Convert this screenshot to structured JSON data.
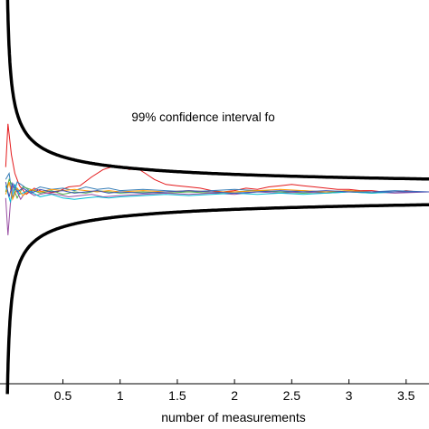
{
  "chart_data": {
    "type": "line",
    "title": "",
    "xlabel": "number of measurements",
    "ylabel": "",
    "xlim": [
      -0.05,
      3.7
    ],
    "ylim": [
      -1.55,
      1.55
    ],
    "grid": false,
    "xticks": [
      {
        "value": 0.5,
        "label": "0.5"
      },
      {
        "value": 1,
        "label": "1"
      },
      {
        "value": 1.5,
        "label": "1.5"
      },
      {
        "value": 2,
        "label": "2"
      },
      {
        "value": 2.5,
        "label": "2.5"
      },
      {
        "value": 3,
        "label": "3"
      },
      {
        "value": 3.5,
        "label": "3.5"
      }
    ],
    "annotation": {
      "text": "99% confidence interval fo",
      "x": 1.1,
      "y": 0.57
    },
    "confidence_bound": {
      "k": 0.2,
      "color": "#000000"
    },
    "series": [
      {
        "color": "#e41a1c",
        "points": [
          [
            0.0,
            0.2
          ],
          [
            0.02,
            0.55
          ],
          [
            0.05,
            0.3
          ],
          [
            0.08,
            0.15
          ],
          [
            0.12,
            0.05
          ],
          [
            0.18,
            -0.02
          ],
          [
            0.25,
            0.03
          ],
          [
            0.35,
            -0.01
          ],
          [
            0.45,
            0.0
          ],
          [
            0.55,
            0.04
          ],
          [
            0.65,
            0.05
          ],
          [
            0.75,
            0.12
          ],
          [
            0.85,
            0.18
          ],
          [
            0.92,
            0.2
          ],
          [
            1.0,
            0.21
          ],
          [
            1.08,
            0.18
          ],
          [
            1.15,
            0.19
          ],
          [
            1.22,
            0.15
          ],
          [
            1.3,
            0.1
          ],
          [
            1.4,
            0.06
          ],
          [
            1.5,
            0.05
          ],
          [
            1.6,
            0.04
          ],
          [
            1.7,
            0.03
          ],
          [
            1.8,
            0.01
          ],
          [
            1.9,
            0.0
          ],
          [
            2.0,
            0.01
          ],
          [
            2.1,
            0.03
          ],
          [
            2.2,
            0.02
          ],
          [
            2.3,
            0.04
          ],
          [
            2.4,
            0.05
          ],
          [
            2.5,
            0.06
          ],
          [
            2.6,
            0.05
          ],
          [
            2.7,
            0.04
          ],
          [
            2.8,
            0.03
          ],
          [
            2.9,
            0.02
          ],
          [
            3.0,
            0.02
          ],
          [
            3.1,
            0.01
          ],
          [
            3.2,
            0.01
          ],
          [
            3.3,
            0.0
          ],
          [
            3.4,
            0.0
          ],
          [
            3.5,
            0.01
          ],
          [
            3.6,
            0.0
          ],
          [
            3.7,
            0.0
          ]
        ]
      },
      {
        "color": "#377eb8",
        "points": [
          [
            0.0,
            0.1
          ],
          [
            0.03,
            0.15
          ],
          [
            0.06,
            -0.05
          ],
          [
            0.1,
            0.08
          ],
          [
            0.15,
            0.05
          ],
          [
            0.22,
            0.0
          ],
          [
            0.3,
            0.04
          ],
          [
            0.4,
            0.02
          ],
          [
            0.5,
            0.03
          ],
          [
            0.6,
            0.01
          ],
          [
            0.7,
            0.04
          ],
          [
            0.8,
            0.02
          ],
          [
            0.9,
            0.03
          ],
          [
            1.0,
            0.01
          ],
          [
            1.2,
            0.02
          ],
          [
            1.4,
            0.01
          ],
          [
            1.6,
            0.0
          ],
          [
            1.8,
            0.01
          ],
          [
            2.0,
            0.02
          ],
          [
            2.2,
            0.01
          ],
          [
            2.4,
            0.0
          ],
          [
            2.6,
            0.01
          ],
          [
            2.8,
            0.0
          ],
          [
            3.0,
            0.01
          ],
          [
            3.2,
            0.0
          ],
          [
            3.4,
            0.01
          ],
          [
            3.7,
            0.0
          ]
        ]
      },
      {
        "color": "#4daf4a",
        "points": [
          [
            0.0,
            0.0
          ],
          [
            0.03,
            0.1
          ],
          [
            0.06,
            0.05
          ],
          [
            0.1,
            -0.05
          ],
          [
            0.15,
            0.04
          ],
          [
            0.22,
            0.02
          ],
          [
            0.3,
            -0.01
          ],
          [
            0.4,
            0.01
          ],
          [
            0.5,
            -0.02
          ],
          [
            0.6,
            0.0
          ],
          [
            0.7,
            -0.01
          ],
          [
            0.8,
            0.01
          ],
          [
            0.9,
            0.0
          ],
          [
            1.0,
            -0.01
          ],
          [
            1.2,
            0.0
          ],
          [
            1.4,
            -0.01
          ],
          [
            1.6,
            0.0
          ],
          [
            1.8,
            -0.01
          ],
          [
            2.0,
            0.0
          ],
          [
            2.2,
            0.01
          ],
          [
            2.4,
            0.0
          ],
          [
            2.6,
            -0.01
          ],
          [
            2.8,
            0.0
          ],
          [
            3.0,
            0.0
          ],
          [
            3.2,
            -0.01
          ],
          [
            3.4,
            0.0
          ],
          [
            3.7,
            0.0
          ]
        ]
      },
      {
        "color": "#984ea3",
        "points": [
          [
            0.0,
            -0.05
          ],
          [
            0.02,
            -0.35
          ],
          [
            0.04,
            -0.1
          ],
          [
            0.06,
            0.05
          ],
          [
            0.09,
            0.02
          ],
          [
            0.13,
            -0.06
          ],
          [
            0.18,
            0.01
          ],
          [
            0.25,
            -0.03
          ],
          [
            0.35,
            -0.01
          ],
          [
            0.45,
            -0.02
          ],
          [
            0.55,
            -0.04
          ],
          [
            0.65,
            -0.03
          ],
          [
            0.75,
            -0.02
          ],
          [
            0.85,
            -0.04
          ],
          [
            1.0,
            -0.03
          ],
          [
            1.2,
            -0.02
          ],
          [
            1.4,
            -0.01
          ],
          [
            1.6,
            -0.02
          ],
          [
            1.8,
            -0.01
          ],
          [
            2.0,
            -0.02
          ],
          [
            2.2,
            0.0
          ],
          [
            2.4,
            -0.01
          ],
          [
            2.6,
            0.0
          ],
          [
            2.8,
            -0.01
          ],
          [
            3.0,
            0.0
          ],
          [
            3.2,
            0.0
          ],
          [
            3.4,
            -0.01
          ],
          [
            3.7,
            0.0
          ]
        ]
      },
      {
        "color": "#00bcd4",
        "points": [
          [
            0.0,
            0.05
          ],
          [
            0.04,
            -0.08
          ],
          [
            0.08,
            0.06
          ],
          [
            0.12,
            -0.02
          ],
          [
            0.2,
            0.01
          ],
          [
            0.3,
            -0.04
          ],
          [
            0.4,
            -0.02
          ],
          [
            0.5,
            -0.05
          ],
          [
            0.6,
            -0.06
          ],
          [
            0.7,
            -0.05
          ],
          [
            0.8,
            -0.04
          ],
          [
            0.9,
            -0.05
          ],
          [
            1.0,
            -0.04
          ],
          [
            1.2,
            -0.03
          ],
          [
            1.4,
            -0.02
          ],
          [
            1.6,
            -0.03
          ],
          [
            1.8,
            -0.02
          ],
          [
            2.0,
            -0.01
          ],
          [
            2.2,
            -0.02
          ],
          [
            2.4,
            -0.01
          ],
          [
            2.6,
            -0.02
          ],
          [
            2.8,
            -0.01
          ],
          [
            3.0,
            0.0
          ],
          [
            3.2,
            -0.01
          ],
          [
            3.4,
            0.0
          ],
          [
            3.7,
            0.0
          ]
        ]
      },
      {
        "color": "#ff9800",
        "points": [
          [
            0.0,
            -0.02
          ],
          [
            0.03,
            0.08
          ],
          [
            0.06,
            -0.06
          ],
          [
            0.1,
            0.03
          ],
          [
            0.15,
            -0.03
          ],
          [
            0.22,
            0.02
          ],
          [
            0.3,
            0.0
          ],
          [
            0.4,
            0.02
          ],
          [
            0.5,
            0.01
          ],
          [
            0.6,
            0.02
          ],
          [
            0.7,
            0.01
          ],
          [
            0.8,
            0.0
          ],
          [
            0.9,
            0.01
          ],
          [
            1.0,
            0.0
          ],
          [
            1.2,
            0.01
          ],
          [
            1.4,
            0.0
          ],
          [
            1.6,
            0.01
          ],
          [
            1.8,
            0.0
          ],
          [
            2.0,
            0.0
          ],
          [
            2.2,
            0.01
          ],
          [
            2.4,
            0.02
          ],
          [
            2.6,
            0.01
          ],
          [
            2.8,
            0.0
          ],
          [
            3.0,
            0.01
          ],
          [
            3.2,
            0.0
          ],
          [
            3.4,
            0.0
          ],
          [
            3.7,
            0.0
          ]
        ]
      },
      {
        "color": "#3f51b5",
        "points": [
          [
            0.0,
            0.08
          ],
          [
            0.03,
            -0.04
          ],
          [
            0.06,
            0.07
          ],
          [
            0.1,
            0.0
          ],
          [
            0.15,
            0.03
          ],
          [
            0.22,
            -0.01
          ],
          [
            0.3,
            0.02
          ],
          [
            0.4,
            0.0
          ],
          [
            0.5,
            0.01
          ],
          [
            0.6,
            -0.01
          ],
          [
            0.7,
            0.0
          ],
          [
            0.8,
            0.01
          ],
          [
            0.9,
            -0.01
          ],
          [
            1.0,
            0.0
          ],
          [
            1.2,
            -0.01
          ],
          [
            1.4,
            0.0
          ],
          [
            1.6,
            0.01
          ],
          [
            1.8,
            0.0
          ],
          [
            2.0,
            -0.01
          ],
          [
            2.2,
            0.0
          ],
          [
            2.4,
            0.01
          ],
          [
            2.6,
            0.0
          ],
          [
            2.8,
            0.01
          ],
          [
            3.0,
            0.0
          ],
          [
            3.2,
            0.0
          ],
          [
            3.4,
            0.0
          ],
          [
            3.7,
            0.0
          ]
        ]
      }
    ]
  }
}
